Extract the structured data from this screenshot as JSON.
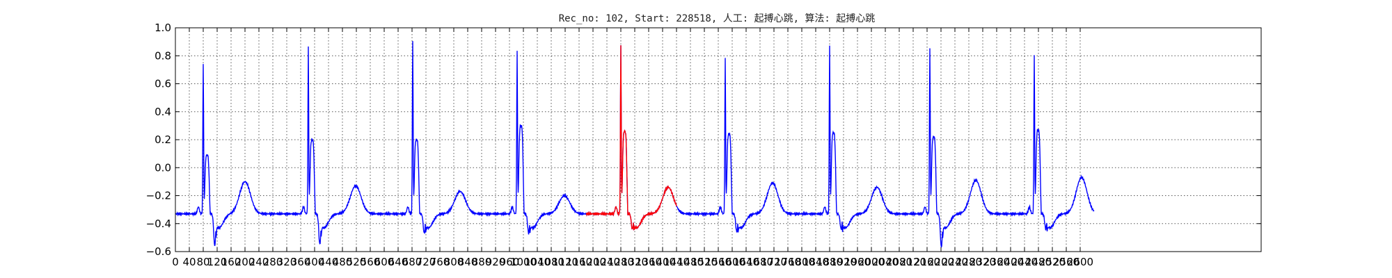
{
  "chart_data": {
    "type": "line",
    "title": "Rec_no: 102, Start: 228518, 人工: 起搏心跳, 算法: 起搏心跳",
    "xlabel": "",
    "ylabel": "",
    "xlim": [
      0,
      3120
    ],
    "ylim": [
      -0.6,
      1.0
    ],
    "grid": true,
    "x_ticks": [
      0,
      40,
      80,
      120,
      160,
      200,
      240,
      280,
      320,
      360,
      400,
      440,
      480,
      520,
      560,
      600,
      640,
      680,
      720,
      760,
      800,
      840,
      880,
      920,
      960,
      1000,
      1040,
      1080,
      1120,
      1160,
      1200,
      1240,
      1280,
      1320,
      1360,
      1400,
      1440,
      1480,
      1520,
      1560,
      1600,
      1640,
      1680,
      1720,
      1760,
      1800,
      1840,
      1880,
      1920,
      1960,
      2000,
      2040,
      2080,
      2120,
      2160,
      2200,
      2240,
      2280,
      2320,
      2360,
      2400,
      2440,
      2480,
      2520,
      2560,
      2600
    ],
    "x_tick_labels": [
      "0",
      "40",
      "80",
      "120",
      "160",
      "200",
      "240",
      "280",
      "320",
      "360",
      "400",
      "440",
      "480",
      "520",
      "560",
      "600",
      "640",
      "680",
      "720",
      "760",
      "800",
      "840",
      "880",
      "920",
      "960",
      "1000",
      "1040",
      "1080",
      "1120",
      "1160",
      "1200",
      "1240",
      "1280",
      "1320",
      "1360",
      "1400",
      "1440",
      "1480",
      "1520",
      "1560",
      "1600",
      "1640",
      "1680",
      "1720",
      "1760",
      "1800",
      "1840",
      "1880",
      "1920",
      "1960",
      "2000",
      "2040",
      "2080",
      "2120",
      "2160",
      "2200",
      "2240",
      "2280",
      "2320",
      "2360",
      "2400",
      "2440",
      "2480",
      "2520",
      "2560",
      "2600"
    ],
    "y_ticks": [
      1.0,
      0.8,
      0.6,
      0.4,
      0.2,
      0.0,
      -0.2,
      -0.4,
      -0.6
    ],
    "y_tick_labels": [
      "1.0",
      "0.8",
      "0.6",
      "0.4",
      "0.2",
      "0.0",
      "−0.2",
      "−0.4",
      "−0.6"
    ],
    "colors": {
      "signal": "#0000ff",
      "highlight": "#ff0000"
    },
    "beats": [
      {
        "r_x": 80,
        "r_y": 0.75,
        "post_y": 0.09,
        "s_y": -0.56,
        "t_x": 200,
        "t_y": -0.1
      },
      {
        "r_x": 382,
        "r_y": 0.86,
        "post_y": 0.2,
        "s_y": -0.55,
        "t_x": 518,
        "t_y": -0.13
      },
      {
        "r_x": 682,
        "r_y": 0.91,
        "post_y": 0.2,
        "s_y": -0.47,
        "t_x": 818,
        "t_y": -0.17
      },
      {
        "r_x": 982,
        "r_y": 0.84,
        "post_y": 0.3,
        "s_y": -0.47,
        "t_x": 1118,
        "t_y": -0.2
      },
      {
        "r_x": 1280,
        "r_y": 0.87,
        "post_y": 0.26,
        "s_y": -0.44,
        "t_x": 1416,
        "t_y": -0.14
      },
      {
        "r_x": 1580,
        "r_y": 0.78,
        "post_y": 0.24,
        "s_y": -0.46,
        "t_x": 1716,
        "t_y": -0.11
      },
      {
        "r_x": 1880,
        "r_y": 0.88,
        "post_y": 0.25,
        "s_y": -0.44,
        "t_x": 2016,
        "t_y": -0.14
      },
      {
        "r_x": 2168,
        "r_y": 0.86,
        "post_y": 0.22,
        "s_y": -0.57,
        "t_x": 2300,
        "t_y": -0.09
      },
      {
        "r_x": 2468,
        "r_y": 0.81,
        "post_y": 0.27,
        "s_y": -0.44,
        "t_x": 2604,
        "t_y": -0.07
      }
    ],
    "series": [
      {
        "x_start": 0,
        "x_end": 2640,
        "color": "#0000ff",
        "baseline_y": -0.33
      },
      {
        "x_start": 1180,
        "x_end": 1440,
        "color": "#ff0000"
      }
    ]
  }
}
